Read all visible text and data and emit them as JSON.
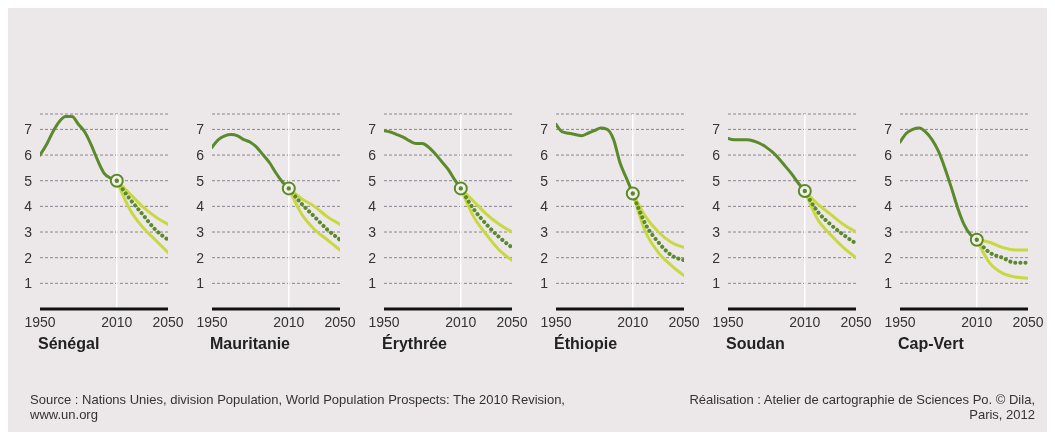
{
  "chart_data": [
    {
      "type": "line",
      "title": "Sénégal",
      "xlim": [
        1950,
        2050
      ],
      "xticks": [
        1950,
        2010,
        2050
      ],
      "ylim": [
        0,
        7.6
      ],
      "yticks": [
        1,
        2,
        3,
        4,
        5,
        6,
        7
      ],
      "grid": "y",
      "ref_lines": [
        {
          "axis": "x",
          "value": 2010,
          "color": "#ffffff"
        }
      ],
      "annotations": [
        "Source : Nations Unies, division Population, World Population Prospects: The 2010 Revision, www.un.org"
      ],
      "series": [
        {
          "color": "#5b8a2c",
          "x": [
            1950,
            1955,
            1960,
            1965,
            1970,
            1975,
            1980,
            1985,
            1990,
            1995,
            2000,
            2005,
            2010
          ],
          "values": [
            6.0,
            6.4,
            6.9,
            7.3,
            7.5,
            7.5,
            7.2,
            6.9,
            6.4,
            5.8,
            5.3,
            5.1,
            5.0
          ]
        },
        {
          "color": "#c8d840",
          "x": [
            2010,
            2020,
            2030,
            2040,
            2050
          ],
          "values": [
            5.0,
            4.5,
            4.0,
            3.6,
            3.3
          ]
        },
        {
          "color": "#c8d840",
          "x": [
            2010,
            2020,
            2030,
            2040,
            2050
          ],
          "values": [
            5.0,
            3.9,
            3.2,
            2.7,
            2.2
          ]
        },
        {
          "color": "#5b8a2c",
          "line_style": "dotted",
          "x": [
            2010,
            2020,
            2030,
            2040,
            2050
          ],
          "values": [
            5.0,
            4.3,
            3.7,
            3.1,
            2.7
          ]
        },
        {
          "type": "scatter",
          "marker": "circle",
          "color": "#5b8a2c",
          "x": [
            2010
          ],
          "values": [
            5.0
          ]
        }
      ]
    },
    {
      "type": "line",
      "title": "Mauritanie",
      "xlim": [
        1950,
        2050
      ],
      "xticks": [
        1950,
        2010,
        2050
      ],
      "ylim": [
        0,
        7.6
      ],
      "yticks": [
        1,
        2,
        3,
        4,
        5,
        6,
        7
      ],
      "grid": "y",
      "ref_lines": [
        {
          "axis": "x",
          "value": 2010,
          "color": "#ffffff"
        }
      ],
      "series": [
        {
          "color": "#5b8a2c",
          "x": [
            1950,
            1955,
            1960,
            1965,
            1970,
            1975,
            1980,
            1985,
            1990,
            1995,
            2000,
            2005,
            2010
          ],
          "values": [
            6.3,
            6.6,
            6.75,
            6.8,
            6.75,
            6.6,
            6.5,
            6.3,
            6.0,
            5.7,
            5.3,
            4.95,
            4.7
          ]
        },
        {
          "color": "#c8d840",
          "x": [
            2010,
            2020,
            2030,
            2040,
            2050
          ],
          "values": [
            4.7,
            4.3,
            4.0,
            3.6,
            3.3
          ]
        },
        {
          "color": "#c8d840",
          "x": [
            2010,
            2020,
            2030,
            2040,
            2050
          ],
          "values": [
            4.7,
            3.7,
            3.1,
            2.7,
            2.3
          ]
        },
        {
          "color": "#5b8a2c",
          "line_style": "dotted",
          "x": [
            2010,
            2020,
            2030,
            2040,
            2050
          ],
          "values": [
            4.7,
            4.1,
            3.6,
            3.1,
            2.7
          ]
        },
        {
          "type": "scatter",
          "marker": "circle",
          "color": "#5b8a2c",
          "x": [
            2010
          ],
          "values": [
            4.7
          ]
        }
      ]
    },
    {
      "type": "line",
      "title": "Érythrée",
      "xlim": [
        1950,
        2050
      ],
      "xticks": [
        1950,
        2010,
        2050
      ],
      "ylim": [
        0,
        7.6
      ],
      "yticks": [
        1,
        2,
        3,
        4,
        5,
        6,
        7
      ],
      "grid": "y",
      "ref_lines": [
        {
          "axis": "x",
          "value": 2010,
          "color": "#ffffff"
        }
      ],
      "series": [
        {
          "color": "#5b8a2c",
          "x": [
            1950,
            1955,
            1960,
            1965,
            1970,
            1975,
            1980,
            1985,
            1990,
            1995,
            2000,
            2005,
            2010
          ],
          "values": [
            6.95,
            6.9,
            6.8,
            6.7,
            6.55,
            6.45,
            6.45,
            6.3,
            6.05,
            5.75,
            5.45,
            5.05,
            4.7
          ]
        },
        {
          "color": "#c8d840",
          "x": [
            2010,
            2020,
            2030,
            2040,
            2050
          ],
          "values": [
            4.7,
            4.2,
            3.7,
            3.3,
            3.0
          ]
        },
        {
          "color": "#c8d840",
          "x": [
            2010,
            2020,
            2030,
            2040,
            2050
          ],
          "values": [
            4.7,
            3.6,
            2.9,
            2.3,
            1.9
          ]
        },
        {
          "color": "#5b8a2c",
          "line_style": "dotted",
          "x": [
            2010,
            2020,
            2030,
            2040,
            2050
          ],
          "values": [
            4.7,
            3.9,
            3.3,
            2.8,
            2.4
          ]
        },
        {
          "type": "scatter",
          "marker": "circle",
          "color": "#5b8a2c",
          "x": [
            2010
          ],
          "values": [
            4.7
          ]
        }
      ]
    },
    {
      "type": "line",
      "title": "Éthiopie",
      "xlim": [
        1950,
        2050
      ],
      "xticks": [
        1950,
        2010,
        2050
      ],
      "ylim": [
        0,
        7.6
      ],
      "yticks": [
        1,
        2,
        3,
        4,
        5,
        6,
        7
      ],
      "grid": "y",
      "ref_lines": [
        {
          "axis": "x",
          "value": 2010,
          "color": "#ffffff"
        }
      ],
      "series": [
        {
          "color": "#5b8a2c",
          "x": [
            1950,
            1955,
            1960,
            1965,
            1970,
            1975,
            1980,
            1985,
            1990,
            1995,
            2000,
            2005,
            2010
          ],
          "values": [
            7.2,
            6.9,
            6.85,
            6.8,
            6.75,
            6.85,
            6.95,
            7.05,
            7.0,
            6.6,
            5.7,
            5.1,
            4.5
          ]
        },
        {
          "color": "#c8d840",
          "x": [
            2010,
            2020,
            2030,
            2040,
            2050
          ],
          "values": [
            4.5,
            3.6,
            3.0,
            2.6,
            2.4
          ]
        },
        {
          "color": "#c8d840",
          "x": [
            2010,
            2020,
            2030,
            2040,
            2050
          ],
          "values": [
            4.5,
            3.0,
            2.2,
            1.7,
            1.3
          ]
        },
        {
          "color": "#5b8a2c",
          "line_style": "dotted",
          "x": [
            2010,
            2020,
            2030,
            2040,
            2050
          ],
          "values": [
            4.5,
            3.3,
            2.6,
            2.1,
            1.9
          ]
        },
        {
          "type": "scatter",
          "marker": "circle",
          "color": "#5b8a2c",
          "x": [
            2010
          ],
          "values": [
            4.5
          ]
        }
      ]
    },
    {
      "type": "line",
      "title": "Soudan",
      "xlim": [
        1950,
        2050
      ],
      "xticks": [
        1950,
        2010,
        2050
      ],
      "ylim": [
        0,
        7.6
      ],
      "yticks": [
        1,
        2,
        3,
        4,
        5,
        6,
        7
      ],
      "grid": "y",
      "ref_lines": [
        {
          "axis": "x",
          "value": 2010,
          "color": "#ffffff"
        }
      ],
      "series": [
        {
          "color": "#5b8a2c",
          "x": [
            1950,
            1955,
            1960,
            1965,
            1970,
            1975,
            1980,
            1985,
            1990,
            1995,
            2000,
            2005,
            2010
          ],
          "values": [
            6.65,
            6.6,
            6.6,
            6.6,
            6.55,
            6.45,
            6.3,
            6.1,
            5.85,
            5.55,
            5.25,
            4.9,
            4.6
          ]
        },
        {
          "color": "#c8d840",
          "x": [
            2010,
            2020,
            2030,
            2040,
            2050
          ],
          "values": [
            4.6,
            4.1,
            3.7,
            3.3,
            3.0
          ]
        },
        {
          "color": "#c8d840",
          "x": [
            2010,
            2020,
            2030,
            2040,
            2050
          ],
          "values": [
            4.6,
            3.5,
            2.9,
            2.4,
            2.0
          ]
        },
        {
          "color": "#5b8a2c",
          "line_style": "dotted",
          "x": [
            2010,
            2020,
            2030,
            2040,
            2050
          ],
          "values": [
            4.6,
            3.8,
            3.3,
            2.9,
            2.55
          ]
        },
        {
          "type": "scatter",
          "marker": "circle",
          "color": "#5b8a2c",
          "x": [
            2010
          ],
          "values": [
            4.6
          ]
        }
      ]
    },
    {
      "type": "line",
      "title": "Cap-Vert",
      "xlim": [
        1950,
        2050
      ],
      "xticks": [
        1950,
        2010,
        2050
      ],
      "ylim": [
        0,
        7.6
      ],
      "yticks": [
        1,
        2,
        3,
        4,
        5,
        6,
        7
      ],
      "grid": "y",
      "ref_lines": [
        {
          "axis": "x",
          "value": 2010,
          "color": "#ffffff"
        }
      ],
      "annotations": [
        "Réalisation : Atelier de cartographie de Sciences Po. © Dila, Paris, 2012"
      ],
      "series": [
        {
          "color": "#5b8a2c",
          "x": [
            1950,
            1955,
            1960,
            1965,
            1970,
            1975,
            1980,
            1985,
            1990,
            1995,
            2000,
            2005,
            2010
          ],
          "values": [
            6.5,
            6.85,
            7.0,
            7.05,
            6.9,
            6.6,
            6.15,
            5.5,
            4.75,
            3.95,
            3.3,
            2.9,
            2.7
          ]
        },
        {
          "color": "#c8d840",
          "x": [
            2010,
            2020,
            2030,
            2040,
            2050
          ],
          "values": [
            2.7,
            2.6,
            2.4,
            2.3,
            2.3
          ]
        },
        {
          "color": "#c8d840",
          "x": [
            2010,
            2020,
            2030,
            2040,
            2050
          ],
          "values": [
            2.7,
            1.8,
            1.4,
            1.25,
            1.2
          ]
        },
        {
          "color": "#5b8a2c",
          "line_style": "dotted",
          "x": [
            2010,
            2020,
            2030,
            2040,
            2050
          ],
          "values": [
            2.7,
            2.2,
            2.0,
            1.8,
            1.8
          ]
        },
        {
          "type": "scatter",
          "marker": "circle",
          "color": "#5b8a2c",
          "x": [
            2010
          ],
          "values": [
            2.7
          ]
        }
      ]
    }
  ]
}
